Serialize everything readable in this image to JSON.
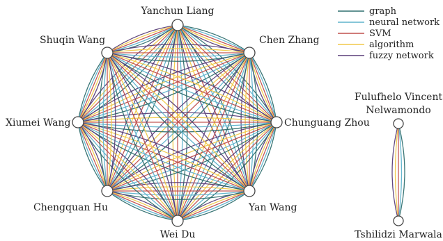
{
  "legend": [
    {
      "label": "graph",
      "color": "#2f6f6f"
    },
    {
      "label": "neural network",
      "color": "#5fb3cc"
    },
    {
      "label": "SVM",
      "color": "#c0504d"
    },
    {
      "label": "algorithm",
      "color": "#f0c94a"
    },
    {
      "label": "fuzzy network",
      "color": "#5a3f78"
    }
  ],
  "clusters": [
    {
      "nodes": [
        "Yanchun Liang",
        "Chen Zhang",
        "Chunguang Zhou",
        "Yan Wang",
        "Wei Du",
        "Chengquan Hu",
        "Xiumei Wang",
        "Shuqin Wang"
      ],
      "edge_types": [
        "graph",
        "neural network",
        "SVM",
        "algorithm",
        "fuzzy network"
      ]
    },
    {
      "nodes": [
        "Fulufhelo Vincent Nelwamondo",
        "Tshilidzi Marwala"
      ],
      "edge_types": [
        "graph",
        "neural network",
        "SVM",
        "algorithm",
        "fuzzy network"
      ]
    }
  ],
  "node_labels": {
    "yanchun": "Yanchun Liang",
    "chen": "Chen Zhang",
    "chunguang": "Chunguang Zhou",
    "yan": "Yan Wang",
    "weidu": "Wei Du",
    "chengquan": "Chengquan Hu",
    "xiumei": "Xiumei Wang",
    "shuqin": "Shuqin Wang",
    "fulu_line1": "Fulufhelo Vincent",
    "fulu_line2": "Nelwamondo",
    "tshilidzi": "Tshilidzi Marwala"
  }
}
